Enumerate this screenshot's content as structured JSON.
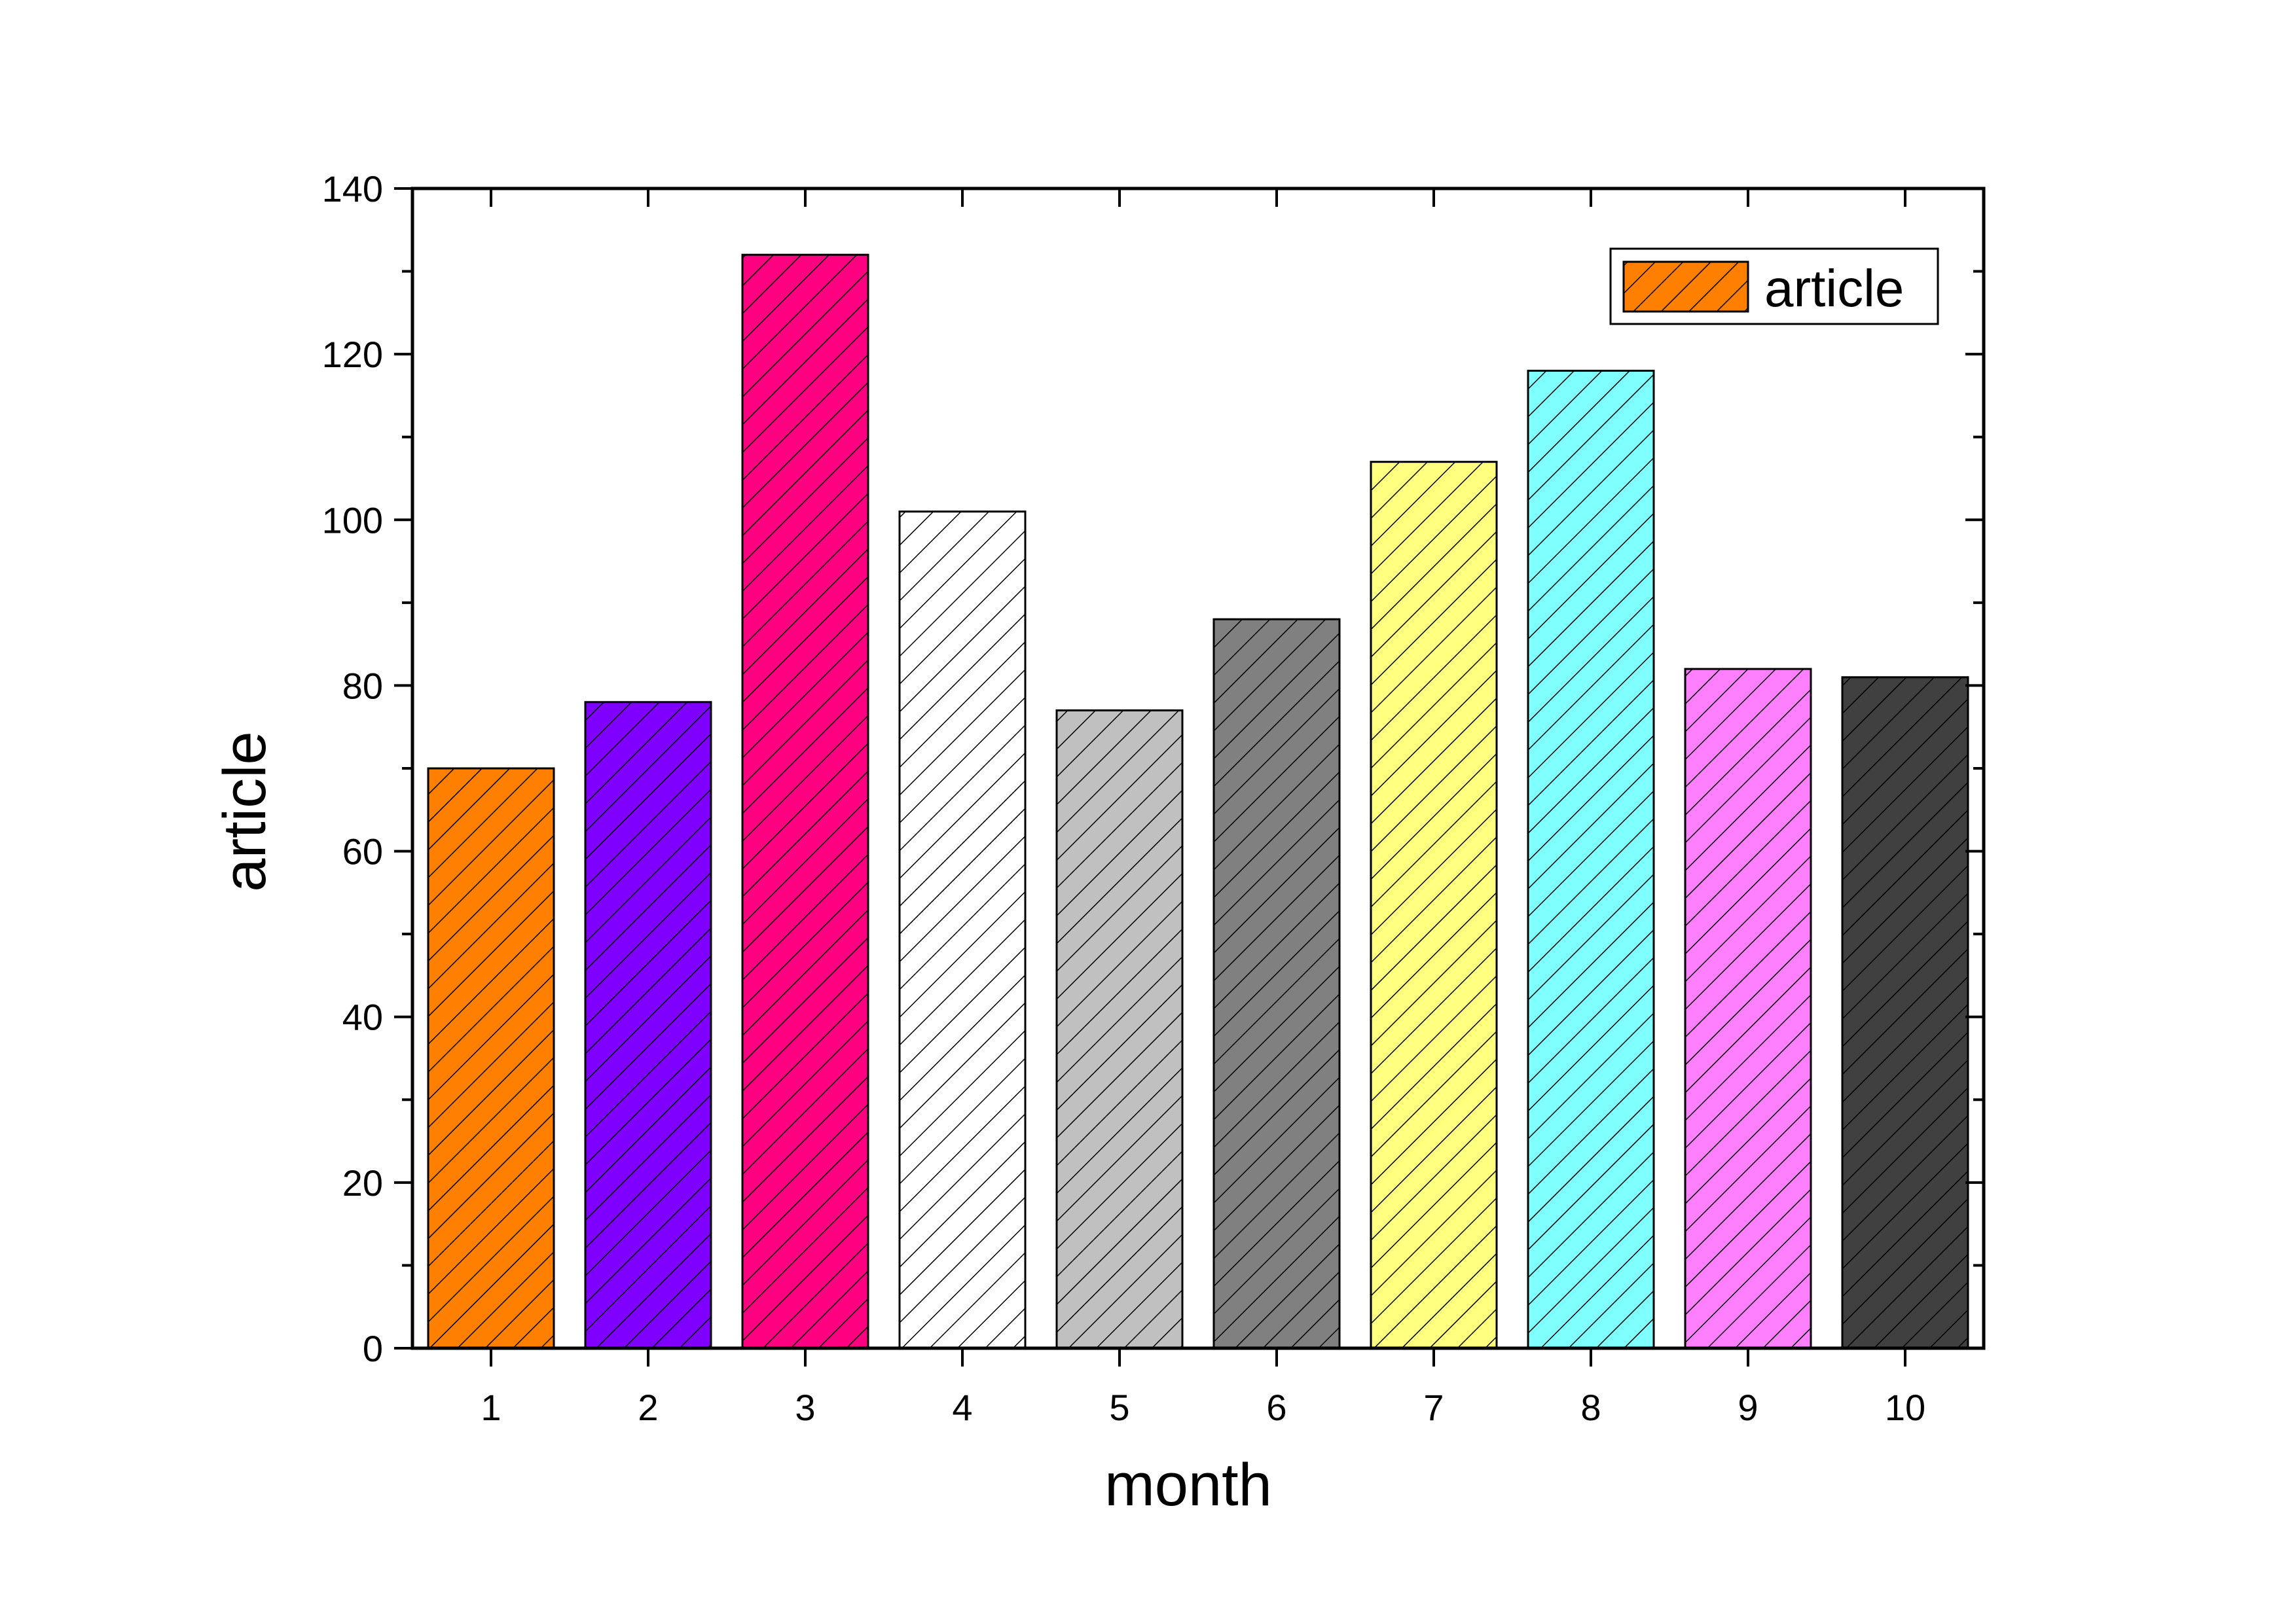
{
  "chart_data": {
    "type": "bar",
    "categories": [
      "1",
      "2",
      "3",
      "4",
      "5",
      "6",
      "7",
      "8",
      "9",
      "10"
    ],
    "series": [
      {
        "name": "article",
        "values": [
          70,
          78,
          132,
          101,
          77,
          88,
          107,
          118,
          82,
          81
        ],
        "colors": [
          "#FF8000",
          "#7F00FF",
          "#FF0080",
          "#FFFFFF",
          "#C0C0C0",
          "#808080",
          "#FFFF80",
          "#80FFFF",
          "#FF80FF",
          "#404040"
        ]
      }
    ],
    "xlabel": "month",
    "ylabel": "article",
    "ylim": [
      0,
      140
    ],
    "yticks": [
      0,
      20,
      40,
      60,
      80,
      100,
      120,
      140
    ],
    "fill_pattern": "diagonal-hatch",
    "grid": false,
    "legend": {
      "position": "top-right",
      "label": "article",
      "swatch_color": "#FF8000"
    }
  }
}
